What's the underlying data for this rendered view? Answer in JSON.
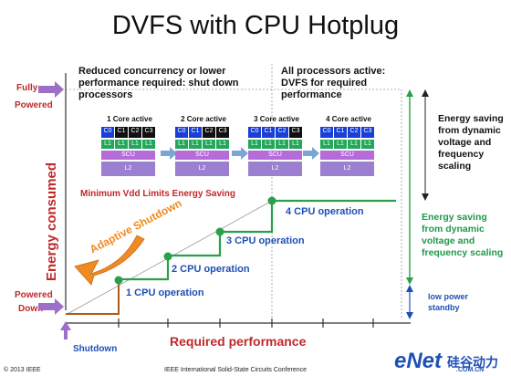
{
  "title": "DVFS with CPU Hotplug",
  "header_left": "Reduced concurrency or lower performance required: shut down processors",
  "header_right": "All processors active: DVFS for required performance",
  "y_axis_label": "Energy consumed",
  "x_axis_label": "Required performance",
  "labels": {
    "fully": "Fully",
    "powered": "Powered",
    "powered_down_1": "Powered",
    "powered_down_2": "Down",
    "shutdown": "Shutdown"
  },
  "core_groups": [
    {
      "title": "1 Core active",
      "cores": [
        "C0",
        "C1",
        "C2",
        "C3"
      ],
      "active": 1
    },
    {
      "title": "2 Core active",
      "cores": [
        "C0",
        "C1",
        "C2",
        "C3"
      ],
      "active": 2
    },
    {
      "title": "3 Core active",
      "cores": [
        "C0",
        "C1",
        "C2",
        "C3"
      ],
      "active": 3
    },
    {
      "title": "4 Core active",
      "cores": [
        "C0",
        "C1",
        "C2",
        "C3"
      ],
      "active": 4
    }
  ],
  "cache_labels": {
    "l1": "L1",
    "scu": "SCU",
    "l2": "L2"
  },
  "min_vdd": "Minimum Vdd Limits Energy Saving",
  "adaptive_shutdown": "Adaptive Shutdown",
  "operations": [
    "1 CPU operation",
    "2 CPU operation",
    "3 CPU operation",
    "4 CPU operation"
  ],
  "energy_saving_black": "Energy saving from dynamic voltage and frequency scaling",
  "energy_saving_green": "Energy saving from dynamic voltage and frequency scaling",
  "low_power": "low power standby",
  "footer_left": "© 2013 IEEE",
  "footer_center": "IEEE International Solid-State Circuits Conference",
  "logo": "eNet",
  "logo_cn": "硅谷动力",
  "logo_url": ".COM.CN",
  "colors": {
    "accent_red": "#c0292b",
    "blue_text": "#1f4fb5",
    "green": "#1f9a4a",
    "core_blue": "#1a3fd6",
    "core_off": "#111111",
    "l1_green": "#23a85a",
    "scu_purple": "#b56cd9",
    "l2_purple": "#9b7fd1",
    "adaptive_orange": "#f08a22"
  }
}
